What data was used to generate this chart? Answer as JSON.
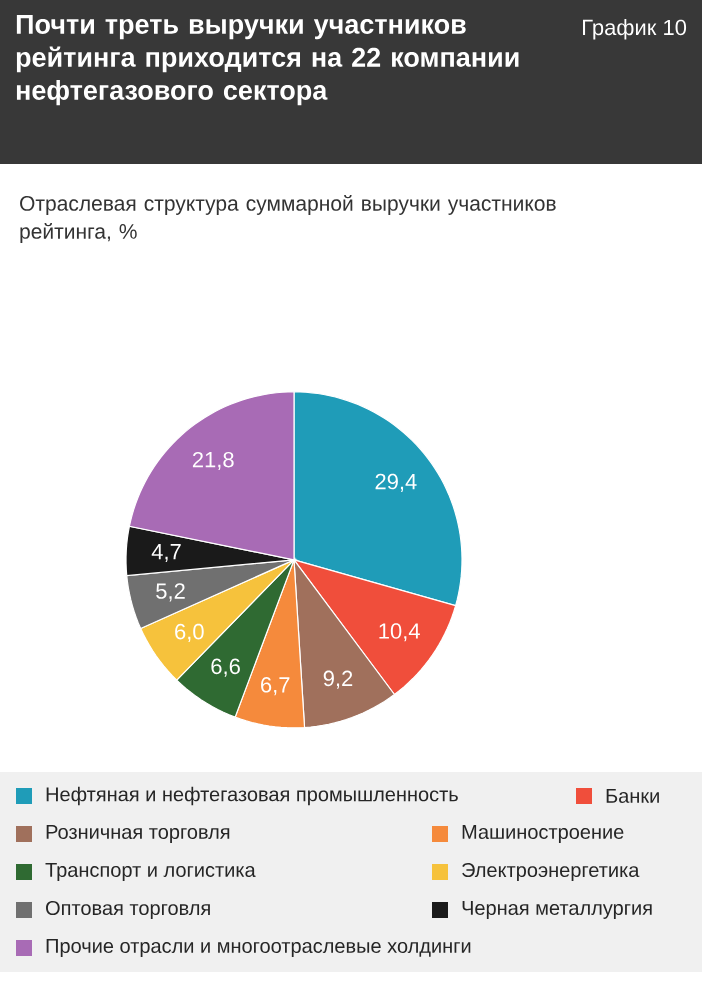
{
  "chart_data": {
    "type": "pie",
    "title": "Почти треть выручки участников рейтинга приходится на 22 компании нефтегазового сектора",
    "subtitle": "Отраслевая структура суммарной выручки участников рейтинга, %",
    "annotations": [
      "График 10"
    ],
    "categories": [
      "Нефтяная и нефтегазовая промышленность",
      "Банки",
      "Розничная торговля",
      "Машиностроение",
      "Транспорт и логистика",
      "Электроэнергетика",
      "Оптовая торговля",
      "Черная металлургия",
      "Прочие отрасли и многоотраслевые холдинги"
    ],
    "values": [
      29.4,
      10.4,
      9.2,
      6.7,
      6.6,
      6.0,
      5.2,
      4.7,
      21.8
    ],
    "value_labels": [
      "29,4",
      "10,4",
      "9,2",
      "6,7",
      "6,6",
      "6,0",
      "5,2",
      "4,7",
      "21,8"
    ],
    "colors": [
      "#1f9cb8",
      "#f04e3b",
      "#a0705c",
      "#f58a3c",
      "#2f6a32",
      "#f6c23c",
      "#707070",
      "#1a1a1a",
      "#a86bb5"
    ],
    "legend": "bottom"
  }
}
